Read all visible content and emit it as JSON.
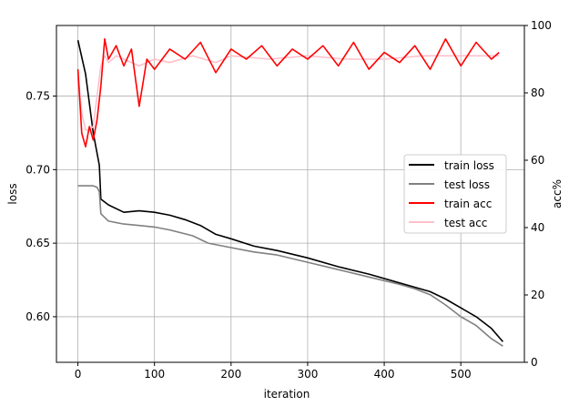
{
  "chart_data": {
    "type": "line",
    "title": "",
    "xlabel": "iteration",
    "ylabel_left": "loss",
    "ylabel_right": "acc%",
    "xlim": [
      -28,
      583
    ],
    "ylim_left": [
      0.569,
      0.798
    ],
    "ylim_right": [
      0,
      100
    ],
    "x_ticks": [
      0,
      100,
      200,
      300,
      400,
      500
    ],
    "y_ticks_left": [
      0.6,
      0.65,
      0.7,
      0.75
    ],
    "y_ticks_left_labels": [
      "0.60",
      "0.65",
      "0.70",
      "0.75"
    ],
    "y_ticks_right": [
      0,
      20,
      40,
      60,
      80,
      100
    ],
    "grid": true,
    "legend_position": "center-right",
    "series": [
      {
        "name": "train loss",
        "axis": "left",
        "color": "#000000",
        "x": [
          0,
          10,
          20,
          28,
          30,
          40,
          60,
          80,
          100,
          120,
          140,
          160,
          180,
          200,
          230,
          260,
          300,
          340,
          380,
          420,
          460,
          480,
          500,
          520,
          540,
          555
        ],
        "y": [
          0.788,
          0.765,
          0.725,
          0.703,
          0.68,
          0.676,
          0.671,
          0.672,
          0.671,
          0.669,
          0.666,
          0.662,
          0.656,
          0.653,
          0.648,
          0.645,
          0.64,
          0.634,
          0.629,
          0.623,
          0.617,
          0.612,
          0.606,
          0.6,
          0.592,
          0.583
        ]
      },
      {
        "name": "test loss",
        "axis": "left",
        "color": "#808080",
        "x": [
          0,
          10,
          20,
          25,
          28,
          30,
          40,
          60,
          80,
          100,
          120,
          150,
          170,
          200,
          230,
          260,
          300,
          340,
          380,
          420,
          440,
          460,
          480,
          500,
          520,
          540,
          555
        ],
        "y": [
          0.689,
          0.689,
          0.689,
          0.688,
          0.685,
          0.67,
          0.665,
          0.663,
          0.662,
          0.661,
          0.659,
          0.655,
          0.65,
          0.647,
          0.644,
          0.642,
          0.637,
          0.632,
          0.627,
          0.622,
          0.619,
          0.615,
          0.608,
          0.6,
          0.594,
          0.585,
          0.58
        ]
      },
      {
        "name": "train acc",
        "axis": "right",
        "color": "#ff0000",
        "x": [
          0,
          5,
          10,
          15,
          20,
          25,
          30,
          35,
          40,
          50,
          60,
          70,
          80,
          90,
          100,
          120,
          140,
          160,
          180,
          200,
          220,
          240,
          260,
          280,
          300,
          320,
          340,
          360,
          380,
          400,
          420,
          440,
          460,
          480,
          500,
          520,
          540,
          550
        ],
        "y": [
          87,
          68,
          64,
          70,
          66,
          72,
          82,
          96,
          90,
          94,
          88,
          93,
          76,
          90,
          87,
          93,
          90,
          95,
          86,
          93,
          90,
          94,
          88,
          93,
          90,
          94,
          88,
          95,
          87,
          92,
          89,
          94,
          87,
          96,
          88,
          95,
          90,
          92
        ]
      },
      {
        "name": "test acc",
        "axis": "right",
        "color": "#ffc0cb",
        "x": [
          0,
          5,
          10,
          15,
          20,
          25,
          30,
          35,
          40,
          50,
          60,
          80,
          100,
          120,
          150,
          180,
          200,
          250,
          300,
          350,
          400,
          450,
          500,
          550
        ],
        "y": [
          86,
          74,
          69,
          69,
          70,
          79,
          88,
          91,
          89,
          91,
          90,
          88,
          90,
          89,
          91,
          89,
          91,
          90,
          91,
          90,
          90,
          91,
          91,
          91
        ]
      }
    ]
  }
}
